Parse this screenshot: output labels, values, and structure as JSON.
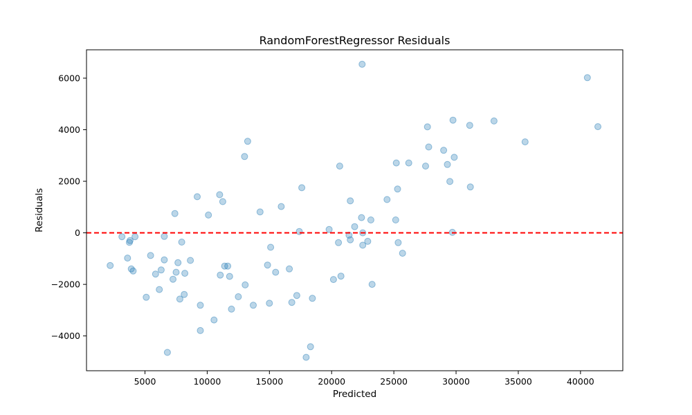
{
  "chart_data": {
    "type": "scatter",
    "title": "RandomForestRegressor Residuals",
    "xlabel": "Predicted",
    "ylabel": "Residuals",
    "xlim": [
      300,
      43400
    ],
    "ylim": [
      -5350,
      7100
    ],
    "xticks": [
      5000,
      10000,
      15000,
      20000,
      25000,
      30000,
      35000,
      40000
    ],
    "yticks": [
      -4000,
      -2000,
      0,
      2000,
      4000,
      6000
    ],
    "xtick_labels": [
      "5000",
      "10000",
      "15000",
      "20000",
      "25000",
      "30000",
      "35000",
      "40000"
    ],
    "ytick_labels": [
      "−4000",
      "−2000",
      "0",
      "2000",
      "4000",
      "6000"
    ],
    "grid": false,
    "reference_line": {
      "y": 0,
      "style": "dashed",
      "color": "#ff0000"
    },
    "point_color": "#1f77b4",
    "point_alpha": 0.3,
    "points": [
      {
        "x": 2200,
        "y": -1270
      },
      {
        "x": 3150,
        "y": -150
      },
      {
        "x": 3600,
        "y": -980
      },
      {
        "x": 3750,
        "y": -370
      },
      {
        "x": 3800,
        "y": -300
      },
      {
        "x": 3900,
        "y": -1400
      },
      {
        "x": 4050,
        "y": -1480
      },
      {
        "x": 4200,
        "y": -150
      },
      {
        "x": 5100,
        "y": -2500
      },
      {
        "x": 5450,
        "y": -880
      },
      {
        "x": 5850,
        "y": -1600
      },
      {
        "x": 6150,
        "y": -2200
      },
      {
        "x": 6300,
        "y": -1440
      },
      {
        "x": 6550,
        "y": -140
      },
      {
        "x": 6550,
        "y": -1050
      },
      {
        "x": 6800,
        "y": -4640
      },
      {
        "x": 7250,
        "y": -1800
      },
      {
        "x": 7400,
        "y": 750
      },
      {
        "x": 7500,
        "y": -1530
      },
      {
        "x": 7650,
        "y": -1160
      },
      {
        "x": 7800,
        "y": -2570
      },
      {
        "x": 7950,
        "y": -360
      },
      {
        "x": 8150,
        "y": -2390
      },
      {
        "x": 8200,
        "y": -1570
      },
      {
        "x": 8650,
        "y": -1070
      },
      {
        "x": 9200,
        "y": 1400
      },
      {
        "x": 9450,
        "y": -2810
      },
      {
        "x": 9450,
        "y": -3790
      },
      {
        "x": 10100,
        "y": 690
      },
      {
        "x": 10550,
        "y": -3380
      },
      {
        "x": 11000,
        "y": 1480
      },
      {
        "x": 11050,
        "y": -1640
      },
      {
        "x": 11250,
        "y": 1210
      },
      {
        "x": 11400,
        "y": -1290
      },
      {
        "x": 11650,
        "y": -1290
      },
      {
        "x": 11800,
        "y": -1690
      },
      {
        "x": 11950,
        "y": -2960
      },
      {
        "x": 12500,
        "y": -2480
      },
      {
        "x": 13000,
        "y": 2960
      },
      {
        "x": 13050,
        "y": -2020
      },
      {
        "x": 13250,
        "y": 3550
      },
      {
        "x": 13700,
        "y": -2810
      },
      {
        "x": 14250,
        "y": 810
      },
      {
        "x": 14850,
        "y": -1250
      },
      {
        "x": 15000,
        "y": -2730
      },
      {
        "x": 15100,
        "y": -560
      },
      {
        "x": 15500,
        "y": -1530
      },
      {
        "x": 15950,
        "y": 1020
      },
      {
        "x": 16600,
        "y": -1400
      },
      {
        "x": 16800,
        "y": -2700
      },
      {
        "x": 17200,
        "y": -2430
      },
      {
        "x": 17400,
        "y": 50
      },
      {
        "x": 17600,
        "y": 1750
      },
      {
        "x": 17950,
        "y": -4830
      },
      {
        "x": 18300,
        "y": -4420
      },
      {
        "x": 18450,
        "y": -2540
      },
      {
        "x": 19800,
        "y": 130
      },
      {
        "x": 20150,
        "y": -1810
      },
      {
        "x": 20550,
        "y": -380
      },
      {
        "x": 20650,
        "y": 2590
      },
      {
        "x": 20750,
        "y": -1680
      },
      {
        "x": 21400,
        "y": -90
      },
      {
        "x": 21500,
        "y": 1240
      },
      {
        "x": 21500,
        "y": -270
      },
      {
        "x": 21850,
        "y": 240
      },
      {
        "x": 22400,
        "y": 590
      },
      {
        "x": 22450,
        "y": 6540
      },
      {
        "x": 22500,
        "y": 0
      },
      {
        "x": 22500,
        "y": -480
      },
      {
        "x": 22900,
        "y": -330
      },
      {
        "x": 23150,
        "y": 500
      },
      {
        "x": 23250,
        "y": -2000
      },
      {
        "x": 24450,
        "y": 1290
      },
      {
        "x": 25150,
        "y": 500
      },
      {
        "x": 25200,
        "y": 2710
      },
      {
        "x": 25300,
        "y": 1700
      },
      {
        "x": 25350,
        "y": -380
      },
      {
        "x": 25700,
        "y": -790
      },
      {
        "x": 26200,
        "y": 2710
      },
      {
        "x": 27550,
        "y": 2590
      },
      {
        "x": 27700,
        "y": 4110
      },
      {
        "x": 27800,
        "y": 3330
      },
      {
        "x": 29000,
        "y": 3200
      },
      {
        "x": 29300,
        "y": 2650
      },
      {
        "x": 29500,
        "y": 1990
      },
      {
        "x": 29700,
        "y": 20
      },
      {
        "x": 29750,
        "y": 4370
      },
      {
        "x": 29850,
        "y": 2930
      },
      {
        "x": 31100,
        "y": 4170
      },
      {
        "x": 31150,
        "y": 1780
      },
      {
        "x": 33050,
        "y": 4340
      },
      {
        "x": 35550,
        "y": 3530
      },
      {
        "x": 40550,
        "y": 6020
      },
      {
        "x": 41400,
        "y": 4120
      }
    ]
  }
}
